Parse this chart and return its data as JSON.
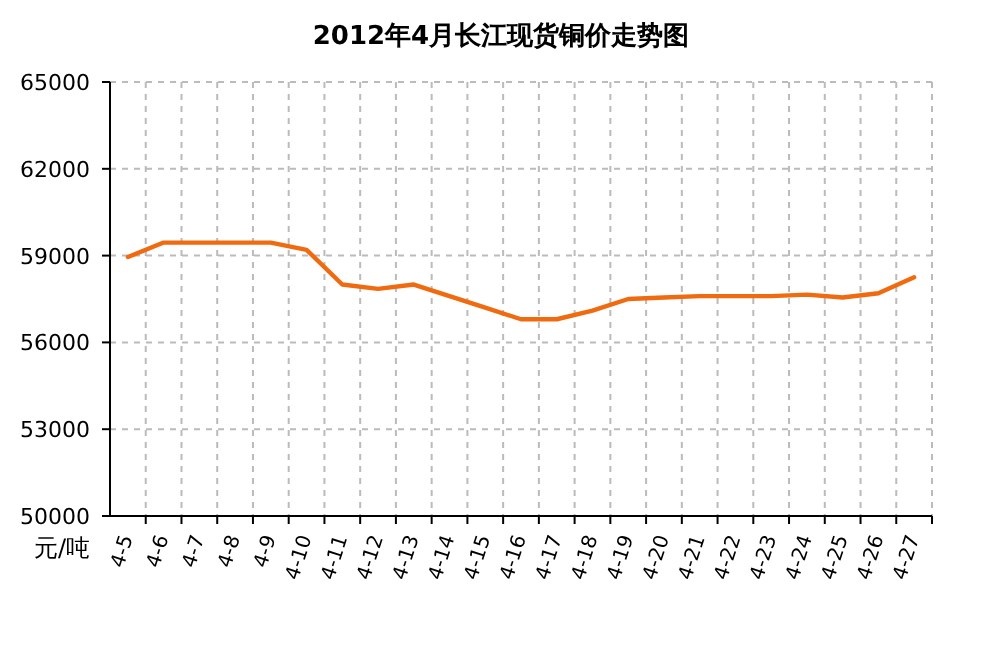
{
  "chart_data": {
    "type": "line",
    "title": "2012年4月长江现货铜价走势图",
    "ylabel": "元/吨",
    "categories": [
      "4-5",
      "4-6",
      "4-7",
      "4-8",
      "4-9",
      "4-10",
      "4-11",
      "4-12",
      "4-13",
      "4-14",
      "4-15",
      "4-16",
      "4-17",
      "4-18",
      "4-19",
      "4-20",
      "4-21",
      "4-22",
      "4-23",
      "4-24",
      "4-25",
      "4-26",
      "4-27"
    ],
    "series": [
      {
        "color": "#f06a10",
        "values": [
          58950,
          59450,
          59450,
          59450,
          59450,
          59200,
          58000,
          57850,
          58000,
          57600,
          57200,
          56800,
          56800,
          57100,
          57500,
          57550,
          57600,
          57600,
          57600,
          57650,
          57550,
          57700,
          58250
        ]
      }
    ],
    "ylim": [
      50000,
      65000
    ],
    "yticks": [
      50000,
      53000,
      56000,
      59000,
      62000,
      65000
    ],
    "grid": true,
    "marker": "none",
    "line_style": "solid"
  }
}
